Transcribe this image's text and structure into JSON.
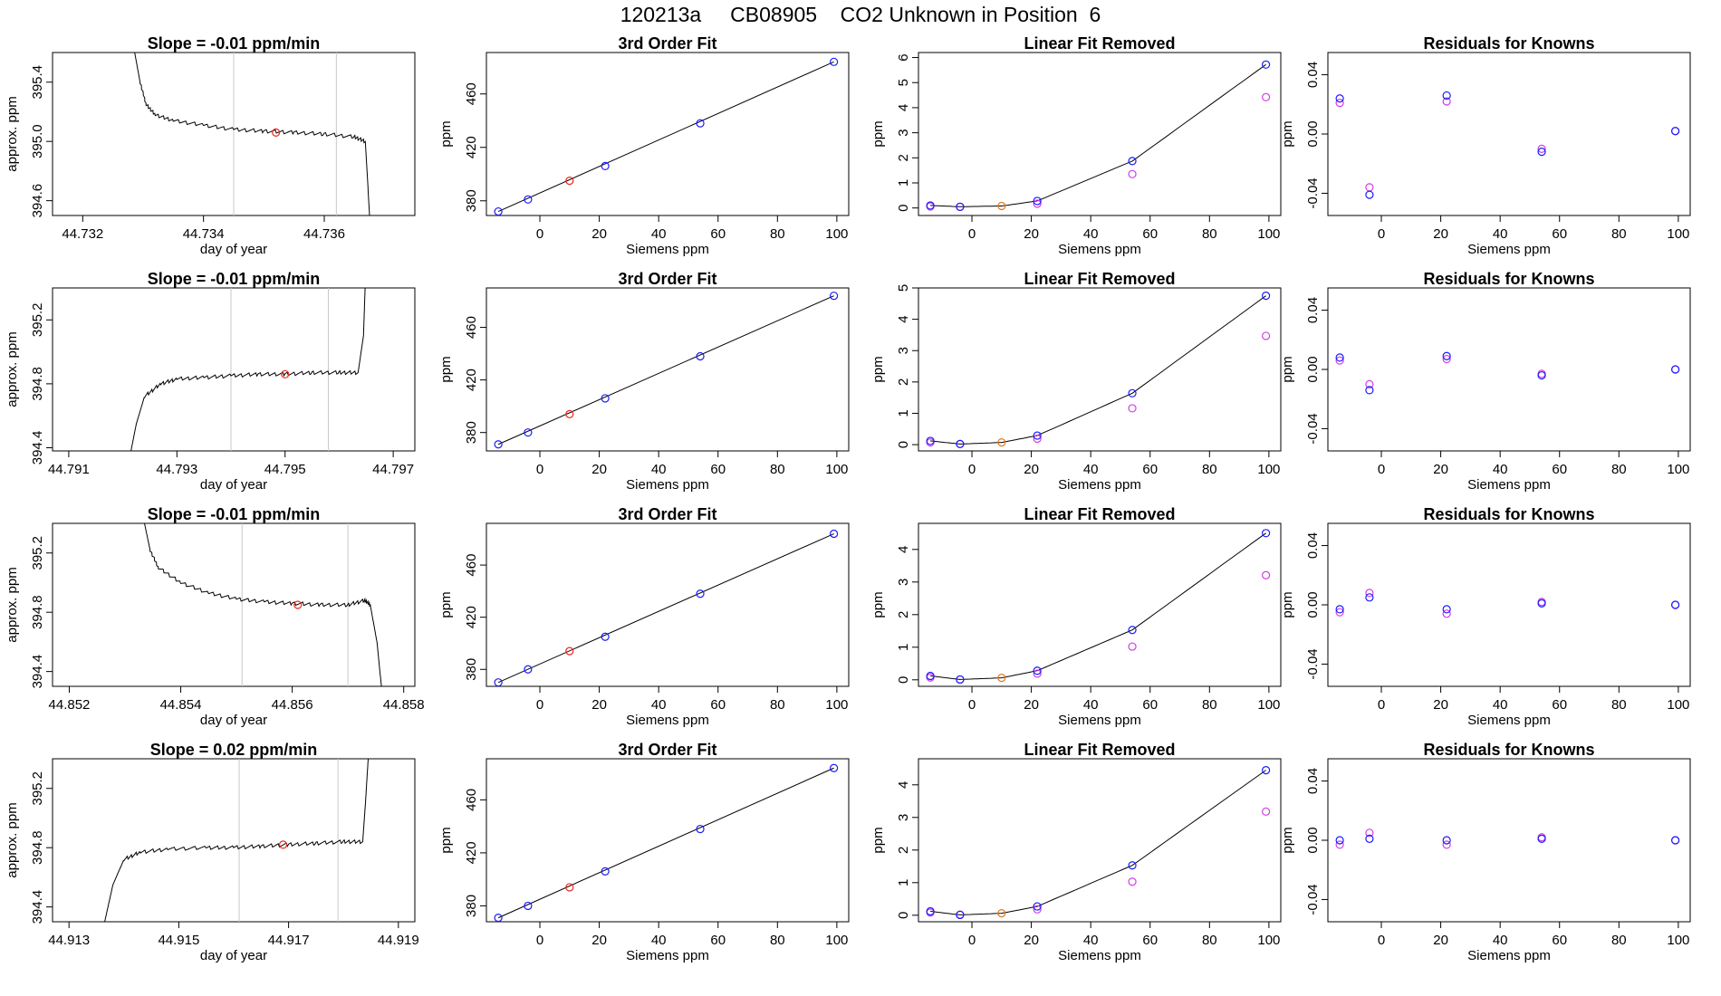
{
  "page_title": "120213a     CB08905    CO2 Unknown in Position  6",
  "colors": {
    "axis": "#000000",
    "line": "#000000",
    "grid_vline": "#c8c8c8",
    "unknown": "#e8281e",
    "known": "#1a1aff",
    "removed_known": "#d23ce6",
    "unknown_removed": "#e27a1a"
  },
  "chart_data": [
    {
      "type": "line",
      "title": "Slope =  -0.01  ppm/min",
      "xlabel": "day of year",
      "ylabel": "approx. ppm",
      "xlim": [
        44.7315,
        44.7375
      ],
      "ylim": [
        394.5,
        395.6
      ],
      "xticks": [
        "44.732",
        "44.734",
        "44.736"
      ],
      "xtick_values": [
        44.732,
        44.734,
        44.736
      ],
      "yticks": [
        "394.6",
        "395.0",
        "395.4"
      ],
      "ytick_values": [
        394.6,
        395.0,
        395.4
      ],
      "vlines": [
        44.7345,
        44.7362
      ],
      "series": [
        {
          "x": [
            44.73286,
            44.73295,
            44.73305,
            44.7332,
            44.7335,
            44.734,
            44.7345,
            44.735,
            44.7355,
            44.736,
            44.7365,
            44.73668,
            44.73675
          ],
          "y": [
            395.6,
            395.4,
            395.25,
            395.18,
            395.14,
            395.11,
            395.08,
            395.07,
            395.06,
            395.05,
            395.03,
            395.0,
            394.5
          ]
        }
      ],
      "marker": {
        "x": 44.7352,
        "y": 395.06
      }
    },
    {
      "type": "scatter",
      "title": "3rd Order Fit",
      "xlabel": "Siemens ppm",
      "ylabel": "ppm",
      "xlim": [
        -18,
        104
      ],
      "ylim": [
        369,
        491
      ],
      "xticks": [
        "0",
        "20",
        "40",
        "60",
        "80",
        "100"
      ],
      "xtick_values": [
        0,
        20,
        40,
        60,
        80,
        100
      ],
      "yticks": [
        "380",
        "420",
        "460"
      ],
      "ytick_values": [
        380,
        420,
        460
      ],
      "fit_x": [
        -14,
        99
      ],
      "fit_y": [
        372,
        484
      ],
      "known": {
        "x": [
          -14,
          -4,
          22,
          54,
          99
        ],
        "y": [
          372,
          381,
          406,
          438,
          484
        ]
      },
      "unknown": {
        "x": [
          10
        ],
        "y": [
          395
        ]
      }
    },
    {
      "type": "scatter",
      "title": "Linear Fit Removed",
      "xlabel": "Siemens ppm",
      "ylabel": "ppm",
      "xlim": [
        -18,
        104
      ],
      "ylim": [
        -0.3,
        6.2
      ],
      "xticks": [
        "0",
        "20",
        "40",
        "60",
        "80",
        "100"
      ],
      "xtick_values": [
        0,
        20,
        40,
        60,
        80,
        100
      ],
      "yticks": [
        "0",
        "1",
        "2",
        "3",
        "4",
        "5",
        "6"
      ],
      "ytick_values": [
        0,
        1,
        2,
        3,
        4,
        5,
        6
      ],
      "fit_x": [
        -14,
        -4,
        10,
        22,
        54,
        99
      ],
      "fit_y": [
        0.1,
        0.05,
        0.08,
        0.28,
        1.87,
        5.72
      ],
      "known": {
        "x": [
          -14,
          -4,
          22,
          54,
          99
        ],
        "y": [
          0.1,
          0.05,
          0.28,
          1.87,
          5.72
        ]
      },
      "removed": {
        "x": [
          -14,
          -4,
          22,
          54,
          99
        ],
        "y": [
          0.06,
          0.04,
          0.17,
          1.35,
          4.42
        ]
      },
      "unknown": {
        "x": [
          10
        ],
        "y": [
          0.08
        ]
      }
    },
    {
      "type": "scatter",
      "title": "Residuals for Knowns",
      "xlabel": "Siemens ppm",
      "ylabel": "ppm",
      "xlim": [
        -18,
        104
      ],
      "ylim": [
        -0.055,
        0.055
      ],
      "xticks": [
        "0",
        "20",
        "40",
        "60",
        "80",
        "100"
      ],
      "xtick_values": [
        0,
        20,
        40,
        60,
        80,
        100
      ],
      "yticks": [
        "-0.04",
        "0.00",
        "0.04"
      ],
      "ytick_values": [
        -0.04,
        0.0,
        0.04
      ],
      "known": {
        "x": [
          -14,
          -4,
          22,
          54,
          99
        ],
        "y": [
          0.024,
          -0.041,
          0.026,
          -0.012,
          0.002
        ]
      },
      "removed": {
        "x": [
          -14,
          -4,
          22,
          54,
          99
        ],
        "y": [
          0.021,
          -0.036,
          0.022,
          -0.01,
          0.002
        ]
      }
    },
    {
      "type": "line",
      "title": "Slope =  -0.01  ppm/min",
      "xlabel": "day of year",
      "ylabel": "approx. ppm",
      "xlim": [
        44.7907,
        44.7974
      ],
      "ylim": [
        394.38,
        395.4
      ],
      "xticks": [
        "44.791",
        "44.793",
        "44.795",
        "44.797"
      ],
      "xtick_values": [
        44.791,
        44.793,
        44.795,
        44.797
      ],
      "yticks": [
        "394.4",
        "394.8",
        "395.2"
      ],
      "ytick_values": [
        394.4,
        394.8,
        395.2
      ],
      "vlines": [
        44.794,
        44.7958
      ],
      "series": [
        {
          "x": [
            44.79215,
            44.79225,
            44.7924,
            44.7927,
            44.793,
            44.7935,
            44.794,
            44.7945,
            44.795,
            44.7955,
            44.796,
            44.79635,
            44.79645,
            44.79648
          ],
          "y": [
            394.38,
            394.55,
            394.72,
            394.8,
            394.83,
            394.84,
            394.85,
            394.86,
            394.86,
            394.87,
            394.87,
            394.87,
            395.1,
            395.4
          ]
        }
      ],
      "marker": {
        "x": 44.795,
        "y": 394.86
      }
    },
    {
      "type": "scatter",
      "title": "3rd Order Fit",
      "xlabel": "Siemens ppm",
      "ylabel": "ppm",
      "xlim": [
        -18,
        104
      ],
      "ylim": [
        366,
        490
      ],
      "xticks": [
        "0",
        "20",
        "40",
        "60",
        "80",
        "100"
      ],
      "xtick_values": [
        0,
        20,
        40,
        60,
        80,
        100
      ],
      "yticks": [
        "380",
        "420",
        "460"
      ],
      "ytick_values": [
        380,
        420,
        460
      ],
      "fit_x": [
        -14,
        99
      ],
      "fit_y": [
        371,
        484
      ],
      "known": {
        "x": [
          -14,
          -4,
          22,
          54,
          99
        ],
        "y": [
          371,
          380,
          406,
          438,
          484
        ]
      },
      "unknown": {
        "x": [
          10
        ],
        "y": [
          394
        ]
      }
    },
    {
      "type": "scatter",
      "title": "Linear Fit Removed",
      "xlabel": "Siemens ppm",
      "ylabel": "ppm",
      "xlim": [
        -18,
        104
      ],
      "ylim": [
        -0.2,
        5.0
      ],
      "xticks": [
        "0",
        "20",
        "40",
        "60",
        "80",
        "100"
      ],
      "xtick_values": [
        0,
        20,
        40,
        60,
        80,
        100
      ],
      "yticks": [
        "0",
        "1",
        "2",
        "3",
        "4",
        "5"
      ],
      "ytick_values": [
        0,
        1,
        2,
        3,
        4,
        5
      ],
      "fit_x": [
        -14,
        -4,
        10,
        22,
        54,
        99
      ],
      "fit_y": [
        0.12,
        0.02,
        0.07,
        0.29,
        1.64,
        4.75
      ],
      "known": {
        "x": [
          -14,
          -4,
          22,
          54,
          99
        ],
        "y": [
          0.12,
          0.02,
          0.29,
          1.64,
          4.75
        ]
      },
      "removed": {
        "x": [
          -14,
          -4,
          22,
          54,
          99
        ],
        "y": [
          0.07,
          0.02,
          0.19,
          1.16,
          3.47
        ]
      },
      "unknown": {
        "x": [
          10
        ],
        "y": [
          0.07
        ]
      }
    },
    {
      "type": "scatter",
      "title": "Residuals for Knowns",
      "xlabel": "Siemens ppm",
      "ylabel": "ppm",
      "xlim": [
        -18,
        104
      ],
      "ylim": [
        -0.055,
        0.055
      ],
      "xticks": [
        "0",
        "20",
        "40",
        "60",
        "80",
        "100"
      ],
      "xtick_values": [
        0,
        20,
        40,
        60,
        80,
        100
      ],
      "yticks": [
        "-0.04",
        "0.00",
        "0.04"
      ],
      "ytick_values": [
        -0.04,
        0.0,
        0.04
      ],
      "known": {
        "x": [
          -14,
          -4,
          22,
          54,
          99
        ],
        "y": [
          0.008,
          -0.014,
          0.009,
          -0.004,
          0.0
        ]
      },
      "removed": {
        "x": [
          -14,
          -4,
          22,
          54,
          99
        ],
        "y": [
          0.006,
          -0.01,
          0.007,
          -0.003,
          0.0
        ]
      }
    },
    {
      "type": "line",
      "title": "Slope =  -0.01  ppm/min",
      "xlabel": "day of year",
      "ylabel": "approx. ppm",
      "xlim": [
        44.8517,
        44.8582
      ],
      "ylim": [
        394.3,
        395.4
      ],
      "xticks": [
        "44.852",
        "44.854",
        "44.856",
        "44.858"
      ],
      "xtick_values": [
        44.852,
        44.854,
        44.856,
        44.858
      ],
      "yticks": [
        "394.4",
        "394.8",
        "395.2"
      ],
      "ytick_values": [
        394.4,
        394.8,
        395.2
      ],
      "vlines": [
        44.8551,
        44.857
      ],
      "series": [
        {
          "x": [
            44.85335,
            44.85345,
            44.8536,
            44.854,
            44.8545,
            44.855,
            44.8555,
            44.856,
            44.8565,
            44.857,
            44.8573,
            44.8574,
            44.85752,
            44.8576
          ],
          "y": [
            395.4,
            395.22,
            395.1,
            395.0,
            394.93,
            394.89,
            394.87,
            394.86,
            394.85,
            394.85,
            394.88,
            394.85,
            394.6,
            394.3
          ]
        }
      ],
      "marker": {
        "x": 44.8561,
        "y": 394.85
      }
    },
    {
      "type": "scatter",
      "title": "3rd Order Fit",
      "xlabel": "Siemens ppm",
      "ylabel": "ppm",
      "xlim": [
        -18,
        104
      ],
      "ylim": [
        367,
        492
      ],
      "xticks": [
        "0",
        "20",
        "40",
        "60",
        "80",
        "100"
      ],
      "xtick_values": [
        0,
        20,
        40,
        60,
        80,
        100
      ],
      "yticks": [
        "380",
        "420",
        "460"
      ],
      "ytick_values": [
        380,
        420,
        460
      ],
      "fit_x": [
        -14,
        99
      ],
      "fit_y": [
        370,
        484
      ],
      "known": {
        "x": [
          -14,
          -4,
          22,
          54,
          99
        ],
        "y": [
          370,
          380,
          405,
          438,
          484
        ]
      },
      "unknown": {
        "x": [
          10
        ],
        "y": [
          394
        ]
      }
    },
    {
      "type": "scatter",
      "title": "Linear Fit Removed",
      "xlabel": "Siemens ppm",
      "ylabel": "ppm",
      "xlim": [
        -18,
        104
      ],
      "ylim": [
        -0.2,
        4.8
      ],
      "xticks": [
        "0",
        "20",
        "40",
        "60",
        "80",
        "100"
      ],
      "xtick_values": [
        0,
        20,
        40,
        60,
        80,
        100
      ],
      "yticks": [
        "0",
        "1",
        "2",
        "3",
        "4"
      ],
      "ytick_values": [
        0,
        1,
        2,
        3,
        4
      ],
      "fit_x": [
        -14,
        -4,
        10,
        22,
        54,
        99
      ],
      "fit_y": [
        0.12,
        0.01,
        0.06,
        0.28,
        1.53,
        4.5
      ],
      "known": {
        "x": [
          -14,
          -4,
          22,
          54,
          99
        ],
        "y": [
          0.12,
          0.01,
          0.28,
          1.53,
          4.5
        ]
      },
      "removed": {
        "x": [
          -14,
          -4,
          22,
          54,
          99
        ],
        "y": [
          0.07,
          0.01,
          0.19,
          1.02,
          3.21
        ]
      },
      "unknown": {
        "x": [
          10
        ],
        "y": [
          0.06
        ]
      }
    },
    {
      "type": "scatter",
      "title": "Residuals for Knowns",
      "xlabel": "Siemens ppm",
      "ylabel": "ppm",
      "xlim": [
        -18,
        104
      ],
      "ylim": [
        -0.055,
        0.055
      ],
      "xticks": [
        "0",
        "20",
        "40",
        "60",
        "80",
        "100"
      ],
      "xtick_values": [
        0,
        20,
        40,
        60,
        80,
        100
      ],
      "yticks": [
        "-0.04",
        "0.00",
        "0.04"
      ],
      "ytick_values": [
        -0.04,
        0.0,
        0.04
      ],
      "known": {
        "x": [
          -14,
          -4,
          22,
          54,
          99
        ],
        "y": [
          -0.003,
          0.005,
          -0.003,
          0.001,
          0.0
        ]
      },
      "removed": {
        "x": [
          -14,
          -4,
          22,
          54,
          99
        ],
        "y": [
          -0.005,
          0.008,
          -0.006,
          0.002,
          0.0
        ]
      }
    },
    {
      "type": "line",
      "title": "Slope =  0.02  ppm/min",
      "xlabel": "day of year",
      "ylabel": "approx. ppm",
      "xlim": [
        44.9127,
        44.9193
      ],
      "ylim": [
        394.3,
        395.4
      ],
      "xticks": [
        "44.913",
        "44.915",
        "44.917",
        "44.919"
      ],
      "xtick_values": [
        44.913,
        44.915,
        44.917,
        44.919
      ],
      "yticks": [
        "394.4",
        "394.8",
        "395.2"
      ],
      "ytick_values": [
        394.4,
        394.8,
        395.2
      ],
      "vlines": [
        44.9161,
        44.9179
      ],
      "series": [
        {
          "x": [
            44.91365,
            44.9138,
            44.914,
            44.9143,
            44.9148,
            44.9155,
            44.916,
            44.9165,
            44.917,
            44.9175,
            44.918,
            44.91835,
            44.9184,
            44.91845
          ],
          "y": [
            394.3,
            394.55,
            394.72,
            394.77,
            394.79,
            394.8,
            394.8,
            394.81,
            394.82,
            394.83,
            394.84,
            394.84,
            395.1,
            395.4
          ]
        }
      ],
      "marker": {
        "x": 44.9169,
        "y": 394.82
      }
    },
    {
      "type": "scatter",
      "title": "3rd Order Fit",
      "xlabel": "Siemens ppm",
      "ylabel": "ppm",
      "xlim": [
        -18,
        104
      ],
      "ylim": [
        368,
        491
      ],
      "xticks": [
        "0",
        "20",
        "40",
        "60",
        "80",
        "100"
      ],
      "xtick_values": [
        0,
        20,
        40,
        60,
        80,
        100
      ],
      "yticks": [
        "380",
        "420",
        "460"
      ],
      "ytick_values": [
        380,
        420,
        460
      ],
      "fit_x": [
        -14,
        99
      ],
      "fit_y": [
        371,
        484
      ],
      "known": {
        "x": [
          -14,
          -4,
          22,
          54,
          99
        ],
        "y": [
          371,
          380,
          406,
          438,
          484
        ]
      },
      "unknown": {
        "x": [
          10
        ],
        "y": [
          394
        ]
      }
    },
    {
      "type": "scatter",
      "title": "Linear Fit Removed",
      "xlabel": "Siemens ppm",
      "ylabel": "ppm",
      "xlim": [
        -18,
        104
      ],
      "ylim": [
        -0.2,
        4.8
      ],
      "xticks": [
        "0",
        "20",
        "40",
        "60",
        "80",
        "100"
      ],
      "xtick_values": [
        0,
        20,
        40,
        60,
        80,
        100
      ],
      "yticks": [
        "0",
        "1",
        "2",
        "3",
        "4"
      ],
      "ytick_values": [
        0,
        1,
        2,
        3,
        4
      ],
      "fit_x": [
        -14,
        -4,
        10,
        22,
        54,
        99
      ],
      "fit_y": [
        0.12,
        0.01,
        0.06,
        0.27,
        1.53,
        4.45
      ],
      "known": {
        "x": [
          -14,
          -4,
          22,
          54,
          99
        ],
        "y": [
          0.12,
          0.01,
          0.27,
          1.53,
          4.45
        ]
      },
      "removed": {
        "x": [
          -14,
          -4,
          22,
          54,
          99
        ],
        "y": [
          0.08,
          0.02,
          0.18,
          1.03,
          3.18
        ]
      },
      "unknown": {
        "x": [
          10
        ],
        "y": [
          0.06
        ]
      }
    },
    {
      "type": "scatter",
      "title": "Residuals for Knowns",
      "xlabel": "Siemens ppm",
      "ylabel": "ppm",
      "xlim": [
        -18,
        104
      ],
      "ylim": [
        -0.055,
        0.055
      ],
      "xticks": [
        "0",
        "20",
        "40",
        "60",
        "80",
        "100"
      ],
      "xtick_values": [
        0,
        20,
        40,
        60,
        80,
        100
      ],
      "yticks": [
        "-0.04",
        "0.00",
        "0.04"
      ],
      "ytick_values": [
        -0.04,
        0.0,
        0.04
      ],
      "known": {
        "x": [
          -14,
          -4,
          22,
          54,
          99
        ],
        "y": [
          0.0,
          0.001,
          0.0,
          0.001,
          0.0
        ]
      },
      "removed": {
        "x": [
          -14,
          -4,
          22,
          54,
          99
        ],
        "y": [
          -0.003,
          0.005,
          -0.003,
          0.002,
          0.0
        ]
      }
    }
  ]
}
